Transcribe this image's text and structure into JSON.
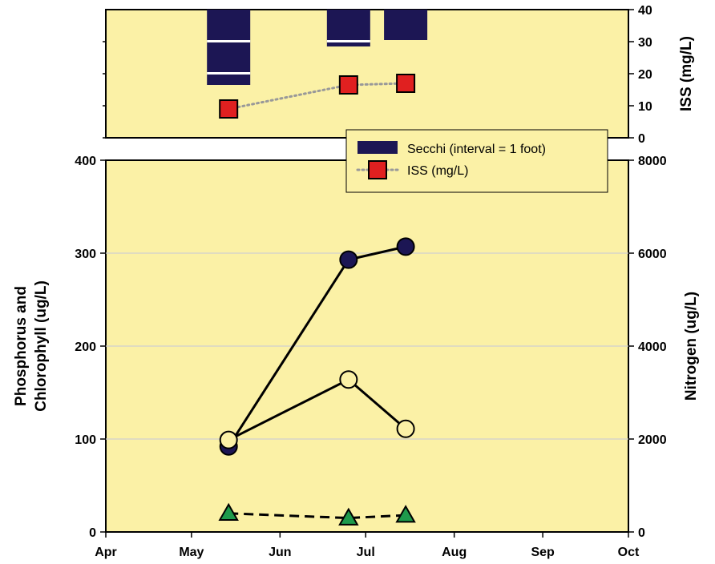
{
  "chart_data": [
    {
      "type": "bar",
      "panel": "top",
      "ylabel_right": "ISS (mg/L)",
      "ylim": [
        0,
        40
      ],
      "yticks_right": [
        "0",
        "10",
        "20",
        "30",
        "40"
      ],
      "grid": false,
      "series": [
        {
          "name": "Secchi (interval = 1 foot)",
          "kind": "stacked-bars",
          "color": "#1c1654",
          "bars": [
            {
              "date": "May 14",
              "segment_tops": [
                40,
                30
              ],
              "segment_bottoms": [
                30.5,
                20.5,
                16.5
              ],
              "depth_value": 16.5
            },
            {
              "date": "Jun 25",
              "segment_tops": [
                40
              ],
              "segment_bottoms": [
                30.5,
                28.5
              ],
              "depth_value": 28.5
            },
            {
              "date": "Jul 15",
              "segment_tops": [
                40
              ],
              "segment_bottoms": [
                30.5
              ],
              "depth_value": 30.5
            }
          ]
        },
        {
          "name": "ISS (mg/L)",
          "kind": "line",
          "style": "dotted",
          "line_color": "#999999",
          "marker": "square",
          "marker_color": "#e02020",
          "points": [
            {
              "date": "May 14",
              "value": 9
            },
            {
              "date": "Jun 25",
              "value": 16.5
            },
            {
              "date": "Jul 15",
              "value": 17
            }
          ]
        }
      ]
    },
    {
      "type": "line",
      "panel": "bottom",
      "x_categories": [
        "Apr",
        "May",
        "Jun",
        "Jul",
        "Aug",
        "Sep",
        "Oct"
      ],
      "ylabel_left_line1": "Phosphorus and",
      "ylabel_left_line2": "Chlorophyll (ug/L)",
      "ylabel_right": "Nitrogen (ug/L)",
      "ylim_left": [
        0,
        400
      ],
      "ylim_right": [
        0,
        8000
      ],
      "yticks_left": [
        "0",
        "100",
        "200",
        "300",
        "400"
      ],
      "yticks_right": [
        "0",
        "2000",
        "4000",
        "6000",
        "8000"
      ],
      "grid": true,
      "series": [
        {
          "kind": "circle-filled",
          "axis": "left",
          "style": "solid",
          "color": "#1c1654",
          "points": [
            {
              "date": "May 14",
              "value": 92
            },
            {
              "date": "Jun 25",
              "value": 293
            },
            {
              "date": "Jul 15",
              "value": 307
            }
          ]
        },
        {
          "kind": "circle-open",
          "axis": "left",
          "style": "solid",
          "color": "#fbf1a6",
          "points": [
            {
              "date": "May 14",
              "value": 99
            },
            {
              "date": "Jun 25",
              "value": 164
            },
            {
              "date": "Jul 15",
              "value": 111
            }
          ]
        },
        {
          "kind": "triangle",
          "axis": "left",
          "style": "dashed",
          "color": "#1e9a4c",
          "points": [
            {
              "date": "May 14",
              "value": 20
            },
            {
              "date": "Jun 25",
              "value": 15
            },
            {
              "date": "Jul 15",
              "value": 18
            }
          ]
        }
      ]
    }
  ],
  "colors": {
    "plot_background": "#fbf1a6",
    "secchi": "#1c1654",
    "iss_marker": "#e02020",
    "triangle": "#1e9a4c",
    "gridline": "#cfcfcf"
  }
}
